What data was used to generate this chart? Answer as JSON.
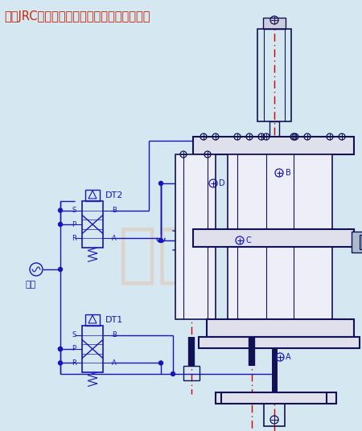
{
  "title": "玖容JRC总行程可调型气液增压缸气路连接图",
  "title_color": "#CC2200",
  "title_fontsize": 10.5,
  "bg_color": "#D5E8F2",
  "line_color": "#1515BB",
  "dark_line": "#111155",
  "red_dash": "#CC0000",
  "wm_color": "#F0A870",
  "label_qiyuan": "气源",
  "label_DT1": "DT1",
  "label_DT2": "DT2",
  "label_A": "A",
  "label_B": "B",
  "label_C": "C",
  "label_D": "D"
}
